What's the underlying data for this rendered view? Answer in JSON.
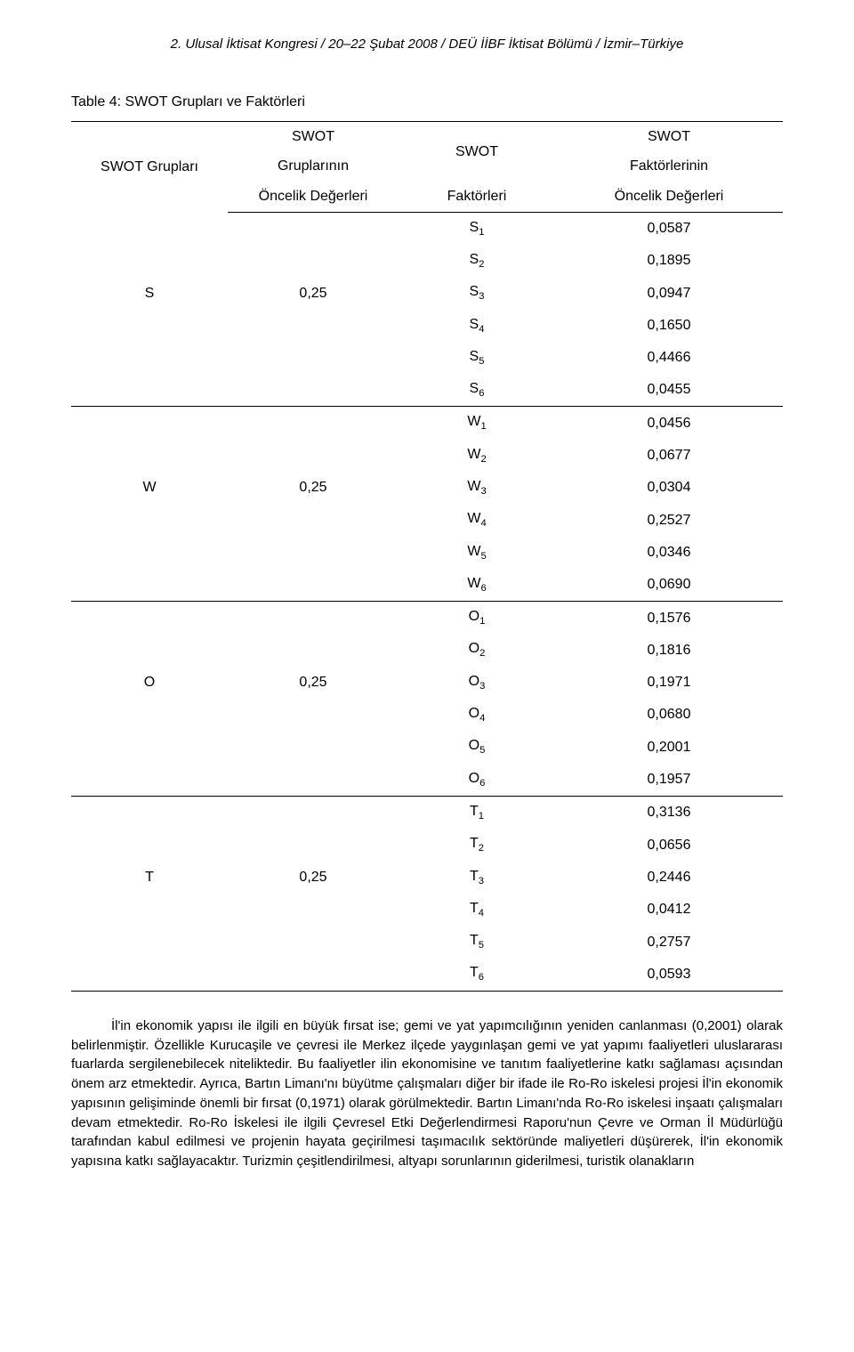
{
  "header": {
    "line": "2. Ulusal İktisat Kongresi / 20–22 Şubat 2008 / DEÜ İİBF İktisat Bölümü / İzmir–Türkiye"
  },
  "table": {
    "caption": "Table 4: SWOT Grupları ve Faktörleri",
    "head": {
      "c1": "SWOT Grupları",
      "c2a": "SWOT",
      "c2b": "Gruplarının",
      "c2c": "Öncelik Değerleri",
      "c3a": "SWOT",
      "c3b": "Faktörleri",
      "c4a": "SWOT",
      "c4b": "Faktörlerinin",
      "c4c": "Öncelik Değerleri"
    },
    "groups": [
      {
        "label": "S",
        "priority": "0,25",
        "factors": [
          {
            "sym": "S",
            "sub": "1",
            "val": "0,0587"
          },
          {
            "sym": "S",
            "sub": "2",
            "val": "0,1895"
          },
          {
            "sym": "S",
            "sub": "3",
            "val": "0,0947"
          },
          {
            "sym": "S",
            "sub": "4",
            "val": "0,1650"
          },
          {
            "sym": "S",
            "sub": "5",
            "val": "0,4466"
          },
          {
            "sym": "S",
            "sub": "6",
            "val": "0,0455"
          }
        ]
      },
      {
        "label": "W",
        "priority": "0,25",
        "factors": [
          {
            "sym": "W",
            "sub": "1",
            "val": "0,0456"
          },
          {
            "sym": "W",
            "sub": "2",
            "val": "0,0677"
          },
          {
            "sym": "W",
            "sub": "3",
            "val": "0,0304"
          },
          {
            "sym": "W",
            "sub": "4",
            "val": "0,2527"
          },
          {
            "sym": "W",
            "sub": "5",
            "val": "0,0346"
          },
          {
            "sym": "W",
            "sub": "6",
            "val": "0,0690"
          }
        ]
      },
      {
        "label": "O",
        "priority": "0,25",
        "factors": [
          {
            "sym": "O",
            "sub": "1",
            "val": "0,1576"
          },
          {
            "sym": "O",
            "sub": "2",
            "val": "0,1816"
          },
          {
            "sym": "O",
            "sub": "3",
            "val": "0,1971"
          },
          {
            "sym": "O",
            "sub": "4",
            "val": "0,0680"
          },
          {
            "sym": "O",
            "sub": "5",
            "val": "0,2001"
          },
          {
            "sym": "O",
            "sub": "6",
            "val": "0,1957"
          }
        ]
      },
      {
        "label": "T",
        "priority": "0,25",
        "factors": [
          {
            "sym": "T",
            "sub": "1",
            "val": "0,3136"
          },
          {
            "sym": "T",
            "sub": "2",
            "val": "0,0656"
          },
          {
            "sym": "T",
            "sub": "3",
            "val": "0,2446"
          },
          {
            "sym": "T",
            "sub": "4",
            "val": "0,0412"
          },
          {
            "sym": "T",
            "sub": "5",
            "val": "0,2757"
          },
          {
            "sym": "T",
            "sub": "6",
            "val": "0,0593"
          }
        ]
      }
    ]
  },
  "paragraph": "İl'in ekonomik yapısı ile ilgili en büyük fırsat ise; gemi ve yat yapımcılığının yeniden canlanması (0,2001) olarak belirlenmiştir. Özellikle Kurucaşile ve çevresi ile Merkez ilçede yaygınlaşan gemi ve yat yapımı faaliyetleri uluslararası fuarlarda sergilenebilecek niteliktedir. Bu faaliyetler ilin ekonomisine ve tanıtım faaliyetlerine katkı sağlaması açısından önem arz etmektedir. Ayrıca, Bartın Limanı'nı büyütme çalışmaları diğer bir ifade ile Ro-Ro iskelesi projesi İl'in ekonomik yapısının gelişiminde önemli bir fırsat (0,1971) olarak görülmektedir. Bartın Limanı'nda Ro-Ro iskelesi inşaatı çalışmaları devam etmektedir. Ro-Ro İskelesi ile ilgili Çevresel Etki Değerlendirmesi Raporu'nun Çevre ve Orman İl Müdürlüğü tarafından kabul edilmesi ve projenin hayata geçirilmesi taşımacılık sektöründe maliyetleri düşürerek, İl'in ekonomik yapısına katkı sağlayacaktır. Turizmin çeşitlendirilmesi, altyapı sorunlarının giderilmesi, turistik olanakların"
}
